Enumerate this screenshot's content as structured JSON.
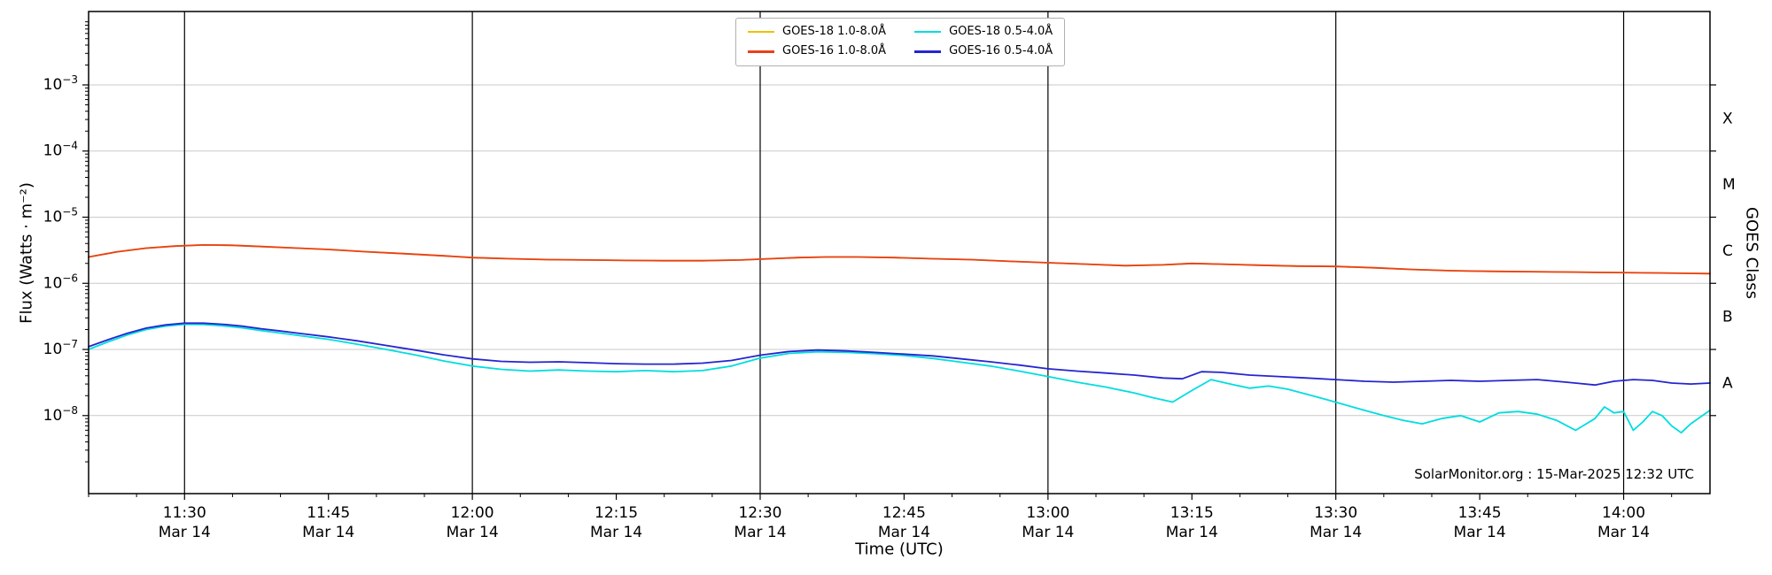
{
  "chart_data": {
    "type": "line",
    "title": "",
    "xlabel": "Time (UTC)",
    "ylabel": "Flux (Watts · m⁻²)",
    "ylabel_right": "GOES Class",
    "watermark": "SolarMonitor.org : 15-Mar-2025 12:32 UTC",
    "xlim_minutes": [
      0,
      169
    ],
    "ylog10_view": [
      -9.18,
      -1.89
    ],
    "x_minor_step_min": 5,
    "x_grid_t": [
      10,
      40,
      70,
      100,
      130,
      160
    ],
    "x_ticks": [
      {
        "t": 10,
        "time": "11:30",
        "date": "Mar 14"
      },
      {
        "t": 25,
        "time": "11:45",
        "date": "Mar 14"
      },
      {
        "t": 40,
        "time": "12:00",
        "date": "Mar 14"
      },
      {
        "t": 55,
        "time": "12:15",
        "date": "Mar 14"
      },
      {
        "t": 70,
        "time": "12:30",
        "date": "Mar 14"
      },
      {
        "t": 85,
        "time": "12:45",
        "date": "Mar 14"
      },
      {
        "t": 100,
        "time": "13:00",
        "date": "Mar 14"
      },
      {
        "t": 115,
        "time": "13:15",
        "date": "Mar 14"
      },
      {
        "t": 130,
        "time": "13:30",
        "date": "Mar 14"
      },
      {
        "t": 145,
        "time": "13:45",
        "date": "Mar 14"
      },
      {
        "t": 160,
        "time": "14:00",
        "date": "Mar 14"
      }
    ],
    "y_ticks": [
      {
        "exp": -3,
        "label": "10⁻³"
      },
      {
        "exp": -4,
        "label": "10⁻⁴"
      },
      {
        "exp": -5,
        "label": "10⁻⁵"
      },
      {
        "exp": -6,
        "label": "10⁻⁶"
      },
      {
        "exp": -7,
        "label": "10⁻⁷"
      },
      {
        "exp": -8,
        "label": "10⁻⁸"
      }
    ],
    "goes_class_labels": [
      {
        "label": "X",
        "log10_center": -3.5
      },
      {
        "label": "M",
        "log10_center": -4.5
      },
      {
        "label": "C",
        "log10_center": -5.5
      },
      {
        "label": "B",
        "log10_center": -6.5
      },
      {
        "label": "A",
        "log10_center": -7.5
      }
    ],
    "colors": {
      "grid_y": "#c9c9c9",
      "grid_x": "#000000",
      "frame": "#000000",
      "background": "#ffffff"
    },
    "legend": {
      "position": "top-center",
      "entries": [
        {
          "label": "GOES-18 1.0-8.0Å",
          "color": "#f0c000"
        },
        {
          "label": "GOES-16 1.0-8.0Å",
          "color": "#e8401a"
        },
        {
          "label": "GOES-18 0.5-4.0Å",
          "color": "#00dde0"
        },
        {
          "label": "GOES-16 0.5-4.0Å",
          "color": "#2525d0"
        }
      ]
    },
    "series": [
      {
        "name": "GOES-18 1.0-8.0Å",
        "color": "#f0c000",
        "points": [
          [
            0,
            2.5e-06
          ],
          [
            3,
            3e-06
          ],
          [
            6,
            3.4e-06
          ],
          [
            9,
            3.65e-06
          ],
          [
            12,
            3.8e-06
          ],
          [
            15,
            3.75e-06
          ],
          [
            18,
            3.6e-06
          ],
          [
            21,
            3.45e-06
          ],
          [
            25,
            3.25e-06
          ],
          [
            29,
            3e-06
          ],
          [
            33,
            2.8e-06
          ],
          [
            37,
            2.6e-06
          ],
          [
            40,
            2.45e-06
          ],
          [
            44,
            2.35e-06
          ],
          [
            48,
            2.28e-06
          ],
          [
            52,
            2.25e-06
          ],
          [
            56,
            2.22e-06
          ],
          [
            60,
            2.2e-06
          ],
          [
            64,
            2.2e-06
          ],
          [
            68,
            2.25e-06
          ],
          [
            71,
            2.35e-06
          ],
          [
            74,
            2.45e-06
          ],
          [
            77,
            2.5e-06
          ],
          [
            80,
            2.5e-06
          ],
          [
            84,
            2.45e-06
          ],
          [
            88,
            2.35e-06
          ],
          [
            92,
            2.28e-06
          ],
          [
            96,
            2.15e-06
          ],
          [
            100,
            2.05e-06
          ],
          [
            104,
            1.95e-06
          ],
          [
            108,
            1.85e-06
          ],
          [
            112,
            1.9e-06
          ],
          [
            115,
            2e-06
          ],
          [
            118,
            1.95e-06
          ],
          [
            122,
            1.88e-06
          ],
          [
            126,
            1.82e-06
          ],
          [
            130,
            1.8e-06
          ],
          [
            134,
            1.72e-06
          ],
          [
            138,
            1.62e-06
          ],
          [
            142,
            1.55e-06
          ],
          [
            146,
            1.52e-06
          ],
          [
            150,
            1.5e-06
          ],
          [
            154,
            1.48e-06
          ],
          [
            158,
            1.46e-06
          ],
          [
            162,
            1.44e-06
          ],
          [
            166,
            1.42e-06
          ],
          [
            169,
            1.4e-06
          ]
        ]
      },
      {
        "name": "GOES-16 1.0-8.0Å",
        "color": "#e8401a",
        "points": [
          [
            0,
            2.5e-06
          ],
          [
            3,
            3e-06
          ],
          [
            6,
            3.4e-06
          ],
          [
            9,
            3.65e-06
          ],
          [
            12,
            3.8e-06
          ],
          [
            15,
            3.75e-06
          ],
          [
            18,
            3.6e-06
          ],
          [
            21,
            3.45e-06
          ],
          [
            25,
            3.25e-06
          ],
          [
            29,
            3e-06
          ],
          [
            33,
            2.8e-06
          ],
          [
            37,
            2.6e-06
          ],
          [
            40,
            2.45e-06
          ],
          [
            44,
            2.35e-06
          ],
          [
            48,
            2.28e-06
          ],
          [
            52,
            2.25e-06
          ],
          [
            56,
            2.22e-06
          ],
          [
            60,
            2.2e-06
          ],
          [
            64,
            2.2e-06
          ],
          [
            68,
            2.25e-06
          ],
          [
            71,
            2.35e-06
          ],
          [
            74,
            2.45e-06
          ],
          [
            77,
            2.5e-06
          ],
          [
            80,
            2.5e-06
          ],
          [
            84,
            2.45e-06
          ],
          [
            88,
            2.35e-06
          ],
          [
            92,
            2.28e-06
          ],
          [
            96,
            2.15e-06
          ],
          [
            100,
            2.05e-06
          ],
          [
            104,
            1.95e-06
          ],
          [
            108,
            1.85e-06
          ],
          [
            112,
            1.9e-06
          ],
          [
            115,
            2e-06
          ],
          [
            118,
            1.95e-06
          ],
          [
            122,
            1.88e-06
          ],
          [
            126,
            1.82e-06
          ],
          [
            130,
            1.8e-06
          ],
          [
            134,
            1.72e-06
          ],
          [
            138,
            1.62e-06
          ],
          [
            142,
            1.55e-06
          ],
          [
            146,
            1.52e-06
          ],
          [
            150,
            1.5e-06
          ],
          [
            154,
            1.48e-06
          ],
          [
            158,
            1.46e-06
          ],
          [
            162,
            1.44e-06
          ],
          [
            166,
            1.42e-06
          ],
          [
            169,
            1.4e-06
          ]
        ]
      },
      {
        "name": "GOES-18 0.5-4.0Å",
        "color": "#00dde0",
        "points": [
          [
            0,
            1e-07
          ],
          [
            2,
            1.3e-07
          ],
          [
            4,
            1.65e-07
          ],
          [
            6,
            2e-07
          ],
          [
            8,
            2.25e-07
          ],
          [
            10,
            2.4e-07
          ],
          [
            12,
            2.38e-07
          ],
          [
            14,
            2.28e-07
          ],
          [
            16,
            2.12e-07
          ],
          [
            18,
            1.93e-07
          ],
          [
            20,
            1.77e-07
          ],
          [
            22,
            1.62e-07
          ],
          [
            25,
            1.42e-07
          ],
          [
            28,
            1.2e-07
          ],
          [
            31,
            1e-07
          ],
          [
            34,
            8.3e-08
          ],
          [
            37,
            6.7e-08
          ],
          [
            40,
            5.6e-08
          ],
          [
            43,
            5e-08
          ],
          [
            46,
            4.7e-08
          ],
          [
            49,
            4.9e-08
          ],
          [
            52,
            4.7e-08
          ],
          [
            55,
            4.6e-08
          ],
          [
            58,
            4.8e-08
          ],
          [
            61,
            4.6e-08
          ],
          [
            64,
            4.8e-08
          ],
          [
            67,
            5.6e-08
          ],
          [
            70,
            7.4e-08
          ],
          [
            73,
            8.7e-08
          ],
          [
            76,
            9.2e-08
          ],
          [
            79,
            9e-08
          ],
          [
            82,
            8.6e-08
          ],
          [
            85,
            8.1e-08
          ],
          [
            88,
            7.3e-08
          ],
          [
            91,
            6.4e-08
          ],
          [
            94,
            5.6e-08
          ],
          [
            97,
            4.7e-08
          ],
          [
            100,
            3.9e-08
          ],
          [
            103,
            3.2e-08
          ],
          [
            106,
            2.7e-08
          ],
          [
            109,
            2.2e-08
          ],
          [
            111,
            1.85e-08
          ],
          [
            113,
            1.6e-08
          ],
          [
            115,
            2.4e-08
          ],
          [
            117,
            3.5e-08
          ],
          [
            119,
            3e-08
          ],
          [
            121,
            2.6e-08
          ],
          [
            123,
            2.8e-08
          ],
          [
            125,
            2.5e-08
          ],
          [
            127,
            2.1e-08
          ],
          [
            129,
            1.75e-08
          ],
          [
            131,
            1.45e-08
          ],
          [
            133,
            1.2e-08
          ],
          [
            135,
            1e-08
          ],
          [
            137,
            8.5e-09
          ],
          [
            139,
            7.5e-09
          ],
          [
            141,
            9e-09
          ],
          [
            143,
            1e-08
          ],
          [
            145,
            8e-09
          ],
          [
            147,
            1.1e-08
          ],
          [
            149,
            1.15e-08
          ],
          [
            151,
            1.05e-08
          ],
          [
            153,
            8.5e-09
          ],
          [
            155,
            6e-09
          ],
          [
            157,
            9e-09
          ],
          [
            158,
            1.35e-08
          ],
          [
            159,
            1.1e-08
          ],
          [
            160,
            1.15e-08
          ],
          [
            161,
            6e-09
          ],
          [
            162,
            8e-09
          ],
          [
            163,
            1.15e-08
          ],
          [
            164,
            1e-08
          ],
          [
            165,
            7e-09
          ],
          [
            166,
            5.5e-09
          ],
          [
            167,
            7.5e-09
          ],
          [
            168,
            9.5e-09
          ],
          [
            169,
            1.2e-08
          ]
        ]
      },
      {
        "name": "GOES-16 0.5-4.0Å",
        "color": "#2525d0",
        "points": [
          [
            0,
            1.1e-07
          ],
          [
            2,
            1.4e-07
          ],
          [
            4,
            1.75e-07
          ],
          [
            6,
            2.1e-07
          ],
          [
            8,
            2.35e-07
          ],
          [
            10,
            2.5e-07
          ],
          [
            12,
            2.5e-07
          ],
          [
            14,
            2.4e-07
          ],
          [
            16,
            2.25e-07
          ],
          [
            18,
            2.05e-07
          ],
          [
            20,
            1.9e-07
          ],
          [
            22,
            1.75e-07
          ],
          [
            25,
            1.55e-07
          ],
          [
            28,
            1.35e-07
          ],
          [
            31,
            1.15e-07
          ],
          [
            34,
            9.8e-08
          ],
          [
            37,
            8.3e-08
          ],
          [
            40,
            7.2e-08
          ],
          [
            43,
            6.6e-08
          ],
          [
            46,
            6.4e-08
          ],
          [
            49,
            6.5e-08
          ],
          [
            52,
            6.3e-08
          ],
          [
            55,
            6.1e-08
          ],
          [
            58,
            6e-08
          ],
          [
            61,
            6e-08
          ],
          [
            64,
            6.2e-08
          ],
          [
            67,
            6.8e-08
          ],
          [
            70,
            8.2e-08
          ],
          [
            73,
            9.3e-08
          ],
          [
            76,
            9.8e-08
          ],
          [
            79,
            9.5e-08
          ],
          [
            82,
            9e-08
          ],
          [
            85,
            8.5e-08
          ],
          [
            88,
            8e-08
          ],
          [
            91,
            7.2e-08
          ],
          [
            94,
            6.5e-08
          ],
          [
            97,
            5.8e-08
          ],
          [
            100,
            5.1e-08
          ],
          [
            103,
            4.7e-08
          ],
          [
            106,
            4.4e-08
          ],
          [
            109,
            4.1e-08
          ],
          [
            112,
            3.7e-08
          ],
          [
            114,
            3.6e-08
          ],
          [
            116,
            4.6e-08
          ],
          [
            118,
            4.5e-08
          ],
          [
            121,
            4.1e-08
          ],
          [
            124,
            3.9e-08
          ],
          [
            127,
            3.7e-08
          ],
          [
            130,
            3.5e-08
          ],
          [
            133,
            3.3e-08
          ],
          [
            136,
            3.2e-08
          ],
          [
            139,
            3.3e-08
          ],
          [
            142,
            3.4e-08
          ],
          [
            145,
            3.3e-08
          ],
          [
            148,
            3.4e-08
          ],
          [
            151,
            3.5e-08
          ],
          [
            154,
            3.2e-08
          ],
          [
            157,
            2.9e-08
          ],
          [
            159,
            3.3e-08
          ],
          [
            161,
            3.5e-08
          ],
          [
            163,
            3.4e-08
          ],
          [
            165,
            3.1e-08
          ],
          [
            167,
            3e-08
          ],
          [
            169,
            3.1e-08
          ]
        ]
      }
    ]
  }
}
